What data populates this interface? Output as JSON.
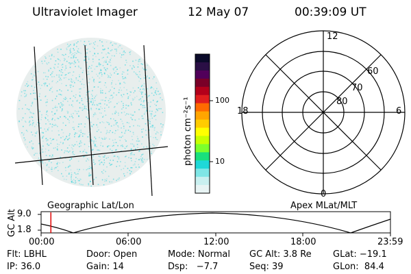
{
  "header": {
    "instrument": "Ultraviolet Imager",
    "date": "12 May 07",
    "time": "00:39:09 UT"
  },
  "colorbar": {
    "unit_label": "photon cm⁻²s⁻¹",
    "ticks": [
      "100",
      "10"
    ],
    "colors": [
      "#0b0b2a",
      "#2a0f45",
      "#51005a",
      "#7a0028",
      "#b3001b",
      "#e01e1e",
      "#ff6a00",
      "#ffa500",
      "#ffcc00",
      "#ffff00",
      "#c8ff00",
      "#7cff2c",
      "#19e07d",
      "#1fd8d8",
      "#7fe6e6",
      "#c9f0f0",
      "#e8f4f4"
    ],
    "low_color": "#e9eded",
    "mid_color": "#00c8d8"
  },
  "geographic_panel": {
    "caption": "Geographic Lat/Lon",
    "disk_fill": "#e8eeed",
    "speckle_color": "#4fd7df"
  },
  "polar_panel": {
    "caption": "Apex MLat/MLT",
    "mlt_labels": {
      "top": "12",
      "left": "18",
      "right": "6",
      "bottom": "0"
    },
    "mlat_labels": [
      "60",
      "70",
      "80"
    ]
  },
  "orbit": {
    "axis_title": "GC Alt",
    "y_max_label": "9.0",
    "y_min_label": "1.8",
    "x_ticks": [
      "00:00",
      "06:00",
      "12:00",
      "18:00",
      "23:59"
    ],
    "current_time_fraction": 0.028,
    "marker_color": "#e00000"
  },
  "status": {
    "flt": "Flt: LBHL",
    "door": "Door: Open",
    "mode": "Mode: Normal",
    "gc_alt": "GC Alt: 3.8 Re",
    "glat": "GLat: −19.1",
    "ip": "IP: 36.0",
    "gain": "Gain: 14",
    "dsp": "Dsp:   −7.7",
    "seq": "Seq: 39",
    "glon": "GLon:  84.4"
  }
}
